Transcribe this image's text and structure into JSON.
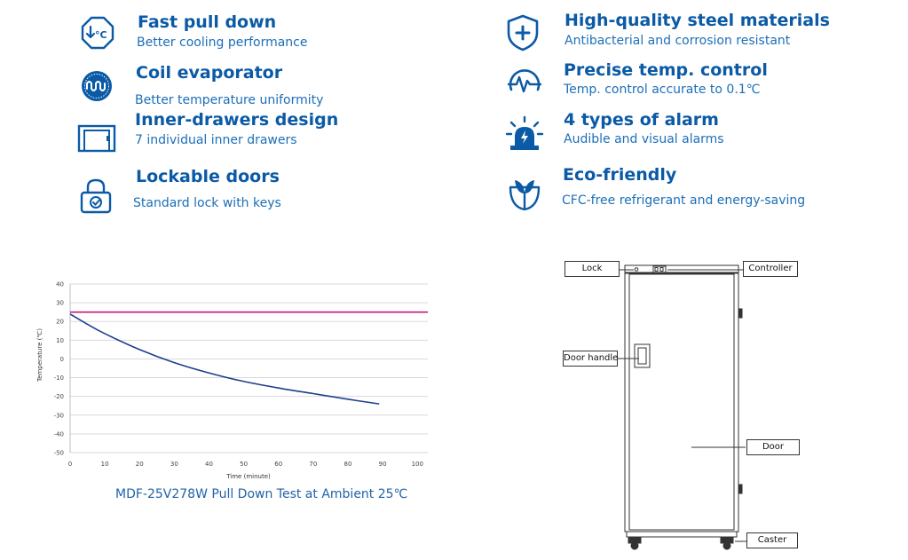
{
  "features": [
    {
      "icon": "thermometer-arrow-icon",
      "title": "Fast pull down",
      "desc": "Better cooling performance"
    },
    {
      "icon": "coil-icon",
      "title": "Coil evaporator",
      "desc": "Better temperature uniformity"
    },
    {
      "icon": "drawers-icon",
      "title": "Inner-drawers design",
      "desc": "7 individual inner drawers"
    },
    {
      "icon": "lock-icon",
      "title": "Lockable doors",
      "desc": "Standard lock with keys"
    },
    {
      "icon": "shield-plus-icon",
      "title": "High-quality steel materials",
      "desc": "Antibacterial and corrosion resistant"
    },
    {
      "icon": "pulse-gauge-icon",
      "title": "Precise temp. control",
      "desc": "Temp. control  accurate to 0.1℃"
    },
    {
      "icon": "alarm-light-icon",
      "title": "4 types of alarm",
      "desc": "Audible and visual alarms"
    },
    {
      "icon": "leaf-icon",
      "title": "Eco-friendly",
      "desc": "CFC-free refrigerant and energy-saving"
    }
  ],
  "chart_data": {
    "type": "line",
    "title": "",
    "caption": "MDF-25V278W Pull Down Test at Ambient 25℃",
    "xlabel": "Time (minute)",
    "ylabel": "Temperature (℃)",
    "xlim": [
      0,
      100
    ],
    "ylim": [
      -50,
      40
    ],
    "xticks": [
      "0",
      "10",
      "20",
      "30",
      "40",
      "50",
      "60",
      "70",
      "80",
      "90",
      "100"
    ],
    "yticks": [
      "40",
      "30",
      "20",
      "10",
      "0",
      "-10",
      "-20",
      "-30",
      "-40",
      "-50"
    ],
    "grid": true,
    "series": [
      {
        "color": "#1a3f8f",
        "x": [
          0,
          5,
          10,
          20,
          30,
          40,
          50,
          60,
          70,
          80,
          89
        ],
        "y": [
          24,
          18.5,
          13.5,
          5,
          -2,
          -7.5,
          -12,
          -15.5,
          -18.5,
          -21.5,
          -24
        ]
      },
      {
        "color": "#c0197a",
        "x": [
          0,
          103
        ],
        "y": [
          25,
          25
        ]
      }
    ]
  },
  "diagram": {
    "labels": {
      "lock": "Lock",
      "controller": "Controller",
      "door_handle": "Door handle",
      "door": "Door",
      "caster": "Caster"
    }
  },
  "colors": {
    "accent": "#0b5aa6",
    "curve": "#1a3f8f",
    "ambient": "#c0197a"
  }
}
